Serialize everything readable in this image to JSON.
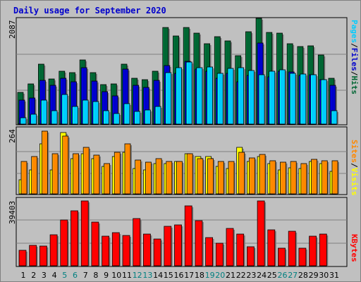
{
  "chart_data": {
    "type": "bar",
    "title": "Daily usage for September 2020",
    "categories": [
      "1",
      "2",
      "3",
      "4",
      "5",
      "6",
      "7",
      "8",
      "9",
      "10",
      "11",
      "12",
      "13",
      "14",
      "15",
      "16",
      "17",
      "18",
      "19",
      "20",
      "21",
      "22",
      "23",
      "24",
      "25",
      "26",
      "27",
      "28",
      "29",
      "30",
      "31"
    ],
    "weekend_days": [
      "5",
      "6",
      "12",
      "13",
      "19",
      "20",
      "26",
      "27"
    ],
    "colors": {
      "hits": "#006633",
      "files": "#0000cc",
      "pages": "#00ccff",
      "visits": "#ffff00",
      "sites": "#ff8800",
      "kbytes": "#ff0000",
      "weekend_label": "#008080",
      "weekday_label": "#000000",
      "title": "#0000cc"
    },
    "panels": [
      {
        "id": "hits",
        "ymax_label": "2087",
        "ylim": [
          0,
          2087
        ],
        "legend": [
          "Pages",
          "Files",
          "Hits"
        ],
        "legend_colors": [
          "#00ccff",
          "#0000cc",
          "#006633"
        ],
        "series": [
          {
            "name": "Hits",
            "color": "#006633",
            "values": [
              620,
              800,
              1180,
              890,
              1040,
              1010,
              1260,
              1020,
              780,
              800,
              1180,
              900,
              870,
              1050,
              1900,
              1740,
              1900,
              1800,
              1580,
              1720,
              1640,
              1350,
              1820,
              2087,
              1810,
              1800,
              1580,
              1530,
              1540,
              1360,
              910
            ]
          },
          {
            "name": "Files",
            "color": "#0000cc",
            "values": [
              470,
              520,
              860,
              760,
              910,
              830,
              1120,
              850,
              640,
              560,
              1080,
              760,
              730,
              860,
              1160,
              1000,
              1240,
              1080,
              1040,
              900,
              1000,
              840,
              960,
              1600,
              930,
              1050,
              1030,
              960,
              980,
              870,
              760
            ]
          },
          {
            "name": "Pages",
            "color": "#00ccff",
            "values": [
              130,
              200,
              470,
              260,
              580,
              350,
              480,
              440,
              260,
              210,
              410,
              250,
              280,
              350,
              1020,
              1120,
              1220,
              1120,
              1130,
              1000,
              1100,
              1120,
              1060,
              980,
              1040,
              1070,
              1000,
              990,
              980,
              870,
              260
            ]
          }
        ]
      },
      {
        "id": "visits",
        "ymax_label": "264",
        "ylim": [
          0,
          264
        ],
        "legend": [
          "Sites",
          "/",
          "Visits"
        ],
        "legend_colors": [
          "#ff8800",
          "#000000",
          "#ffff00"
        ],
        "series": [
          {
            "name": "Visits",
            "color": "#ffff00",
            "values": [
              55,
              95,
              200,
              95,
              245,
              140,
              160,
              140,
              110,
              150,
              165,
              100,
              95,
              120,
              120,
              130,
              160,
              150,
              150,
              110,
              100,
              185,
              130,
              150,
              120,
              95,
              105,
              100,
              130,
              120,
              90
            ]
          },
          {
            "name": "Sites",
            "color": "#ff8800",
            "values": [
              130,
              150,
              250,
              160,
              230,
              160,
              185,
              155,
              120,
              165,
              200,
              135,
              125,
              140,
              128,
              130,
              160,
              140,
              140,
              128,
              129,
              165,
              143,
              156,
              133,
              127,
              130,
              122,
              138,
              132,
              132
            ]
          }
        ]
      },
      {
        "id": "kbytes",
        "ymax_label": "39403",
        "ylim": [
          0,
          39403
        ],
        "legend": [
          "KBytes"
        ],
        "legend_colors": [
          "#ff0000"
        ],
        "series": [
          {
            "name": "KBytes",
            "color": "#ff0000",
            "values": [
              9000,
              11700,
              11300,
              17900,
              26600,
              31900,
              37900,
              25300,
              17400,
              19100,
              17600,
              27700,
              18500,
              15700,
              22900,
              23900,
              34700,
              26300,
              16500,
              13200,
              21800,
              18300,
              11000,
              37800,
              21100,
              10200,
              20000,
              10200,
              17400,
              18300,
              0
            ]
          }
        ]
      }
    ]
  }
}
